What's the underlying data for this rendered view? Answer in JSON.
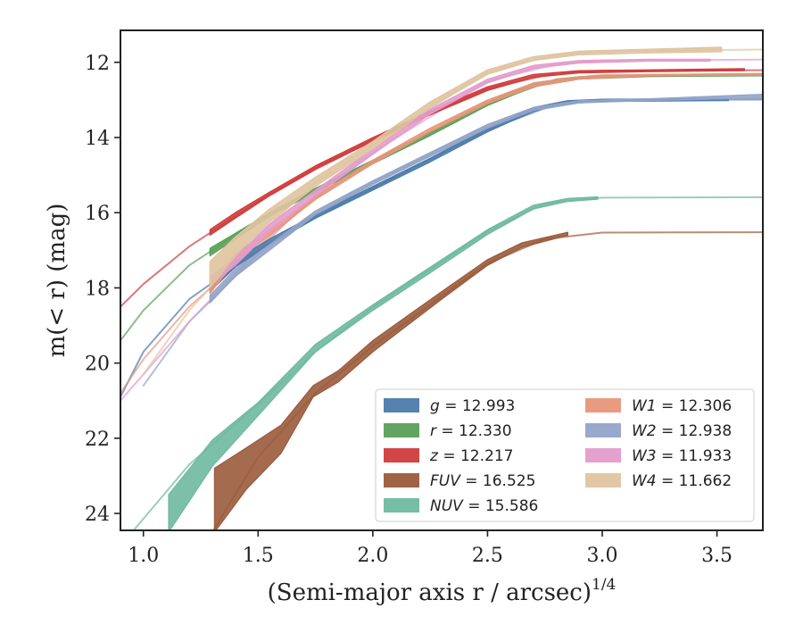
{
  "chart_data": {
    "type": "line",
    "xlabel": "(Semi-major axis r / arcsec)",
    "xlabel_power": "1/4",
    "ylabel": "m(< r) (mag)",
    "xlim": [
      0.9,
      3.7
    ],
    "ylim": [
      24.45,
      11.15
    ],
    "y_inverted": true,
    "xticks": [
      "1.0",
      "1.5",
      "2.0",
      "2.5",
      "3.0",
      "3.5"
    ],
    "xtick_values": [
      1.0,
      1.5,
      2.0,
      2.5,
      3.0,
      3.5
    ],
    "yticks": [
      "12",
      "14",
      "16",
      "18",
      "20",
      "22",
      "24"
    ],
    "ytick_values": [
      12,
      14,
      16,
      18,
      20,
      22,
      24
    ],
    "grid": false,
    "legend_position": "lower-right",
    "series": [
      {
        "name": "g",
        "value": "12.993",
        "color": "#4c7bab",
        "band": [
          {
            "x": 1.29,
            "lo": 17.8,
            "hi": 18.1
          },
          {
            "x": 1.4,
            "lo": 17.25,
            "hi": 17.45
          },
          {
            "x": 1.55,
            "lo": 16.7,
            "hi": 16.85
          },
          {
            "x": 1.75,
            "lo": 16.05,
            "hi": 16.15
          },
          {
            "x": 2.0,
            "lo": 15.3,
            "hi": 15.4
          },
          {
            "x": 2.25,
            "lo": 14.55,
            "hi": 14.65
          },
          {
            "x": 2.5,
            "lo": 13.75,
            "hi": 13.85
          },
          {
            "x": 2.7,
            "lo": 13.2,
            "hi": 13.3
          },
          {
            "x": 2.85,
            "lo": 13.02,
            "hi": 13.1
          },
          {
            "x": 3.0,
            "lo": 12.98,
            "hi": 13.04
          },
          {
            "x": 3.55,
            "lo": 12.96,
            "hi": 13.02
          }
        ],
        "model": [
          {
            "x": 0.9,
            "y": 20.9
          },
          {
            "x": 1.0,
            "y": 19.7
          },
          {
            "x": 1.2,
            "y": 18.3
          },
          {
            "x": 1.5,
            "y": 17.0
          },
          {
            "x": 1.75,
            "y": 16.1
          },
          {
            "x": 2.0,
            "y": 15.35
          },
          {
            "x": 2.5,
            "y": 13.8
          },
          {
            "x": 2.8,
            "y": 13.1
          },
          {
            "x": 3.0,
            "y": 13.0
          },
          {
            "x": 3.7,
            "y": 12.99
          }
        ]
      },
      {
        "name": "r",
        "value": "12.330",
        "color": "#5aa05a",
        "band": [
          {
            "x": 1.29,
            "lo": 16.95,
            "hi": 17.15
          },
          {
            "x": 1.4,
            "lo": 16.55,
            "hi": 16.7
          },
          {
            "x": 1.55,
            "lo": 16.0,
            "hi": 16.1
          },
          {
            "x": 1.75,
            "lo": 15.35,
            "hi": 15.45
          },
          {
            "x": 2.0,
            "lo": 14.6,
            "hi": 14.7
          },
          {
            "x": 2.25,
            "lo": 13.85,
            "hi": 13.95
          },
          {
            "x": 2.5,
            "lo": 13.05,
            "hi": 13.15
          },
          {
            "x": 2.7,
            "lo": 12.55,
            "hi": 12.65
          },
          {
            "x": 2.9,
            "lo": 12.38,
            "hi": 12.45
          },
          {
            "x": 3.2,
            "lo": 12.33,
            "hi": 12.38
          },
          {
            "x": 3.7,
            "lo": 12.31,
            "hi": 12.36
          }
        ],
        "model": [
          {
            "x": 0.9,
            "y": 19.4
          },
          {
            "x": 1.0,
            "y": 18.6
          },
          {
            "x": 1.2,
            "y": 17.4
          },
          {
            "x": 1.5,
            "y": 16.2
          },
          {
            "x": 1.75,
            "y": 15.4
          },
          {
            "x": 2.0,
            "y": 14.65
          },
          {
            "x": 2.5,
            "y": 13.1
          },
          {
            "x": 2.8,
            "y": 12.45
          },
          {
            "x": 3.0,
            "y": 12.35
          },
          {
            "x": 3.7,
            "y": 12.33
          }
        ]
      },
      {
        "name": "z",
        "value": "12.217",
        "color": "#d03c3c",
        "band": [
          {
            "x": 1.29,
            "lo": 16.45,
            "hi": 16.6
          },
          {
            "x": 1.4,
            "lo": 16.0,
            "hi": 16.15
          },
          {
            "x": 1.55,
            "lo": 15.45,
            "hi": 15.55
          },
          {
            "x": 1.75,
            "lo": 14.75,
            "hi": 14.85
          },
          {
            "x": 2.0,
            "lo": 14.0,
            "hi": 14.1
          },
          {
            "x": 2.25,
            "lo": 13.3,
            "hi": 13.4
          },
          {
            "x": 2.5,
            "lo": 12.65,
            "hi": 12.75
          },
          {
            "x": 2.7,
            "lo": 12.32,
            "hi": 12.4
          },
          {
            "x": 2.9,
            "lo": 12.22,
            "hi": 12.28
          },
          {
            "x": 3.2,
            "lo": 12.2,
            "hi": 12.25
          },
          {
            "x": 3.62,
            "lo": 12.17,
            "hi": 12.22
          }
        ],
        "model": [
          {
            "x": 0.9,
            "y": 18.5
          },
          {
            "x": 1.0,
            "y": 17.9
          },
          {
            "x": 1.2,
            "y": 16.9
          },
          {
            "x": 1.5,
            "y": 15.7
          },
          {
            "x": 1.75,
            "y": 14.8
          },
          {
            "x": 2.0,
            "y": 14.05
          },
          {
            "x": 2.5,
            "y": 12.7
          },
          {
            "x": 2.8,
            "y": 12.28
          },
          {
            "x": 3.0,
            "y": 12.22
          },
          {
            "x": 3.7,
            "y": 12.21
          }
        ]
      },
      {
        "name": "FUV",
        "value": "16.525",
        "color": "#9a5b3c",
        "band": [
          {
            "x": 1.31,
            "lo": 22.8,
            "hi": 24.5
          },
          {
            "x": 1.45,
            "lo": 22.25,
            "hi": 23.35
          },
          {
            "x": 1.6,
            "lo": 21.65,
            "hi": 22.4
          },
          {
            "x": 1.74,
            "lo": 20.6,
            "hi": 20.9
          },
          {
            "x": 1.85,
            "lo": 20.2,
            "hi": 20.5
          },
          {
            "x": 2.0,
            "lo": 19.4,
            "hi": 19.7
          },
          {
            "x": 2.15,
            "lo": 18.75,
            "hi": 19.0
          },
          {
            "x": 2.3,
            "lo": 18.1,
            "hi": 18.3
          },
          {
            "x": 2.5,
            "lo": 17.25,
            "hi": 17.4
          },
          {
            "x": 2.65,
            "lo": 16.8,
            "hi": 16.92
          },
          {
            "x": 2.85,
            "lo": 16.52,
            "hi": 16.6
          }
        ],
        "model": [
          {
            "x": 1.3,
            "y": 24.5
          },
          {
            "x": 1.5,
            "y": 22.5
          },
          {
            "x": 1.75,
            "y": 20.8
          },
          {
            "x": 2.0,
            "y": 19.55
          },
          {
            "x": 2.25,
            "y": 18.45
          },
          {
            "x": 2.5,
            "y": 17.35
          },
          {
            "x": 2.75,
            "y": 16.7
          },
          {
            "x": 3.0,
            "y": 16.53
          },
          {
            "x": 3.7,
            "y": 16.52
          }
        ]
      },
      {
        "name": "NUV",
        "value": "15.586",
        "color": "#6fb9a0",
        "band": [
          {
            "x": 1.11,
            "lo": 23.5,
            "hi": 24.5
          },
          {
            "x": 1.3,
            "lo": 22.05,
            "hi": 22.75
          },
          {
            "x": 1.5,
            "lo": 21.05,
            "hi": 21.4
          },
          {
            "x": 1.75,
            "lo": 19.5,
            "hi": 19.7
          },
          {
            "x": 2.0,
            "lo": 18.45,
            "hi": 18.6
          },
          {
            "x": 2.25,
            "lo": 17.45,
            "hi": 17.6
          },
          {
            "x": 2.5,
            "lo": 16.45,
            "hi": 16.58
          },
          {
            "x": 2.7,
            "lo": 15.8,
            "hi": 15.9
          },
          {
            "x": 2.85,
            "lo": 15.62,
            "hi": 15.7
          },
          {
            "x": 2.98,
            "lo": 15.58,
            "hi": 15.64
          }
        ],
        "model": [
          {
            "x": 0.95,
            "y": 24.5
          },
          {
            "x": 1.2,
            "y": 22.7
          },
          {
            "x": 1.5,
            "y": 21.1
          },
          {
            "x": 1.75,
            "y": 19.7
          },
          {
            "x": 2.0,
            "y": 18.5
          },
          {
            "x": 2.5,
            "y": 16.5
          },
          {
            "x": 2.75,
            "y": 15.75
          },
          {
            "x": 3.0,
            "y": 15.6
          },
          {
            "x": 3.7,
            "y": 15.59
          }
        ]
      },
      {
        "name": "W1",
        "value": "12.306",
        "color": "#e8967a",
        "band": [
          {
            "x": 1.29,
            "lo": 17.9,
            "hi": 18.15
          },
          {
            "x": 1.4,
            "lo": 17.1,
            "hi": 17.3
          },
          {
            "x": 1.55,
            "lo": 16.45,
            "hi": 16.6
          },
          {
            "x": 1.75,
            "lo": 15.55,
            "hi": 15.65
          },
          {
            "x": 2.0,
            "lo": 14.6,
            "hi": 14.7
          },
          {
            "x": 2.25,
            "lo": 13.75,
            "hi": 13.85
          },
          {
            "x": 2.5,
            "lo": 13.0,
            "hi": 13.1
          },
          {
            "x": 2.7,
            "lo": 12.55,
            "hi": 12.65
          },
          {
            "x": 2.9,
            "lo": 12.38,
            "hi": 12.45
          },
          {
            "x": 3.2,
            "lo": 12.32,
            "hi": 12.36
          },
          {
            "x": 3.7,
            "lo": 12.3,
            "hi": 12.34
          }
        ],
        "model": [
          {
            "x": 0.9,
            "y": 20.8
          },
          {
            "x": 1.0,
            "y": 19.9
          },
          {
            "x": 1.2,
            "y": 18.5
          },
          {
            "x": 1.5,
            "y": 16.9
          },
          {
            "x": 1.75,
            "y": 15.6
          },
          {
            "x": 2.0,
            "y": 14.65
          },
          {
            "x": 2.5,
            "y": 13.05
          },
          {
            "x": 2.8,
            "y": 12.45
          },
          {
            "x": 3.0,
            "y": 12.34
          },
          {
            "x": 3.7,
            "y": 12.31
          }
        ]
      },
      {
        "name": "W2",
        "value": "12.938",
        "color": "#93a4c8",
        "band": [
          {
            "x": 1.29,
            "lo": 18.2,
            "hi": 18.4
          },
          {
            "x": 1.4,
            "lo": 17.5,
            "hi": 17.7
          },
          {
            "x": 1.55,
            "lo": 16.85,
            "hi": 17.0
          },
          {
            "x": 1.75,
            "lo": 15.95,
            "hi": 16.05
          },
          {
            "x": 2.0,
            "lo": 15.15,
            "hi": 15.25
          },
          {
            "x": 2.25,
            "lo": 14.4,
            "hi": 14.5
          },
          {
            "x": 2.5,
            "lo": 13.65,
            "hi": 13.75
          },
          {
            "x": 2.7,
            "lo": 13.2,
            "hi": 13.28
          },
          {
            "x": 2.9,
            "lo": 13.02,
            "hi": 13.08
          },
          {
            "x": 3.2,
            "lo": 12.97,
            "hi": 13.02
          },
          {
            "x": 3.7,
            "lo": 12.85,
            "hi": 12.95
          }
        ],
        "model": [
          {
            "x": 1.0,
            "y": 20.6
          },
          {
            "x": 1.2,
            "y": 18.9
          },
          {
            "x": 1.5,
            "y": 17.1
          },
          {
            "x": 1.75,
            "y": 16.0
          },
          {
            "x": 2.0,
            "y": 15.2
          },
          {
            "x": 2.5,
            "y": 13.7
          },
          {
            "x": 2.8,
            "y": 13.1
          },
          {
            "x": 3.0,
            "y": 13.0
          },
          {
            "x": 3.7,
            "y": 12.98
          }
        ]
      },
      {
        "name": "W3",
        "value": "11.933",
        "color": "#e39ccb",
        "band": [
          {
            "x": 1.29,
            "lo": 17.7,
            "hi": 17.95
          },
          {
            "x": 1.4,
            "lo": 17.2,
            "hi": 17.4
          },
          {
            "x": 1.55,
            "lo": 16.3,
            "hi": 16.5
          },
          {
            "x": 1.75,
            "lo": 15.4,
            "hi": 15.55
          },
          {
            "x": 2.0,
            "lo": 14.3,
            "hi": 14.45
          },
          {
            "x": 2.25,
            "lo": 13.25,
            "hi": 13.38
          },
          {
            "x": 2.5,
            "lo": 12.45,
            "hi": 12.55
          },
          {
            "x": 2.7,
            "lo": 12.08,
            "hi": 12.16
          },
          {
            "x": 2.9,
            "lo": 11.95,
            "hi": 12.02
          },
          {
            "x": 3.2,
            "lo": 11.92,
            "hi": 11.97
          },
          {
            "x": 3.47,
            "lo": 11.92,
            "hi": 11.97
          }
        ],
        "model": [
          {
            "x": 0.9,
            "y": 21.0
          },
          {
            "x": 1.0,
            "y": 20.3
          },
          {
            "x": 1.2,
            "y": 18.9
          },
          {
            "x": 1.5,
            "y": 17.0
          },
          {
            "x": 1.75,
            "y": 15.5
          },
          {
            "x": 2.0,
            "y": 14.4
          },
          {
            "x": 2.5,
            "y": 12.5
          },
          {
            "x": 2.8,
            "y": 12.05
          },
          {
            "x": 3.0,
            "y": 11.95
          },
          {
            "x": 3.7,
            "y": 11.93
          }
        ]
      },
      {
        "name": "W4",
        "value": "11.662",
        "color": "#dfc4a0",
        "band": [
          {
            "x": 1.29,
            "lo": 17.3,
            "hi": 18.0
          },
          {
            "x": 1.4,
            "lo": 16.65,
            "hi": 17.15
          },
          {
            "x": 1.55,
            "lo": 15.9,
            "hi": 16.25
          },
          {
            "x": 1.75,
            "lo": 15.05,
            "hi": 15.3
          },
          {
            "x": 2.0,
            "lo": 14.1,
            "hi": 14.3
          },
          {
            "x": 2.25,
            "lo": 13.05,
            "hi": 13.2
          },
          {
            "x": 2.5,
            "lo": 12.2,
            "hi": 12.32
          },
          {
            "x": 2.7,
            "lo": 11.85,
            "hi": 11.95
          },
          {
            "x": 2.9,
            "lo": 11.7,
            "hi": 11.8
          },
          {
            "x": 3.2,
            "lo": 11.65,
            "hi": 11.75
          },
          {
            "x": 3.52,
            "lo": 11.6,
            "hi": 11.72
          }
        ],
        "model": [
          {
            "x": 1.0,
            "y": 20.3
          },
          {
            "x": 1.2,
            "y": 18.6
          },
          {
            "x": 1.5,
            "y": 16.6
          },
          {
            "x": 1.75,
            "y": 15.2
          },
          {
            "x": 2.0,
            "y": 14.2
          },
          {
            "x": 2.5,
            "y": 12.25
          },
          {
            "x": 2.8,
            "y": 11.8
          },
          {
            "x": 3.0,
            "y": 11.7
          },
          {
            "x": 3.7,
            "y": 11.66
          }
        ]
      }
    ]
  }
}
